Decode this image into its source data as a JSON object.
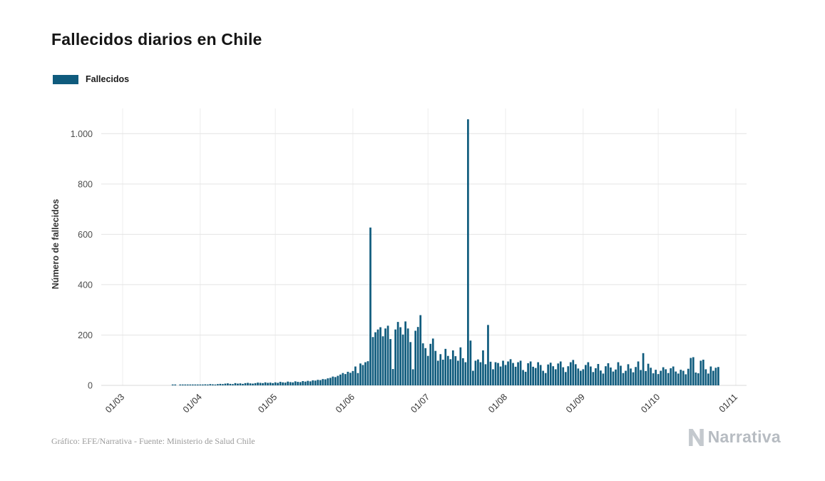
{
  "page": {
    "title": "Fallecidos diarios en Chile",
    "legend": {
      "label": "Fallecidos",
      "color": "#0f5b7d"
    },
    "caption": "Gráfico: EFE/Narrativa - Fuente: Ministerio de Salud Chile",
    "brand": "Narrativa"
  },
  "chart_data": {
    "type": "bar",
    "title": "Fallecidos diarios en Chile",
    "xlabel": "",
    "ylabel": "Número de fallecidos",
    "legend_position": "top-left",
    "grid": true,
    "bar_color": "#0f5b7d",
    "ylim": [
      0,
      1100
    ],
    "y_ticks": [
      0,
      200,
      400,
      600,
      800,
      1000
    ],
    "y_tick_labels": [
      "0",
      "200",
      "400",
      "600",
      "800",
      "1.000"
    ],
    "x_tick_labels": [
      "01/03",
      "01/04",
      "01/05",
      "01/06",
      "01/07",
      "01/08",
      "01/09",
      "01/10",
      "01/11"
    ],
    "x_tick_day_offsets": [
      0,
      31,
      61,
      92,
      122,
      153,
      184,
      214,
      245
    ],
    "x_unit": "day",
    "x_start": "01/03",
    "x_end": "25/10",
    "notable_points": [
      {
        "x": "08/06",
        "value": 627
      },
      {
        "x": "17/07",
        "value": 1057
      }
    ],
    "series": [
      {
        "name": "Fallecidos",
        "values": [
          0,
          0,
          0,
          0,
          0,
          0,
          0,
          0,
          0,
          0,
          0,
          0,
          0,
          0,
          0,
          0,
          0,
          0,
          0,
          0,
          1,
          1,
          0,
          1,
          1,
          2,
          1,
          2,
          2,
          3,
          3,
          3,
          2,
          4,
          3,
          5,
          4,
          2,
          5,
          6,
          5,
          7,
          8,
          6,
          5,
          9,
          7,
          8,
          6,
          9,
          10,
          8,
          7,
          9,
          11,
          10,
          9,
          12,
          10,
          11,
          9,
          12,
          10,
          14,
          12,
          11,
          15,
          13,
          12,
          16,
          14,
          13,
          17,
          15,
          18,
          16,
          20,
          19,
          22,
          21,
          25,
          24,
          28,
          30,
          35,
          33,
          38,
          43,
          49,
          45,
          54,
          50,
          57,
          75,
          49,
          87,
          81,
          92,
          96,
          627,
          192,
          211,
          222,
          231,
          195,
          226,
          237,
          184,
          65,
          222,
          252,
          231,
          202,
          254,
          226,
          172,
          64,
          217,
          232,
          279,
          167,
          148,
          117,
          165,
          186,
          137,
          98,
          124,
          102,
          145,
          117,
          104,
          139,
          116,
          98,
          151,
          108,
          92,
          1057,
          178,
          58,
          98,
          103,
          92,
          139,
          84,
          240,
          94,
          64,
          92,
          89,
          75,
          98,
          81,
          95,
          104,
          89,
          74,
          92,
          98,
          61,
          54,
          88,
          95,
          74,
          69,
          92,
          81,
          58,
          49,
          83,
          90,
          76,
          64,
          87,
          95,
          72,
          53,
          76,
          92,
          101,
          84,
          67,
          58,
          64,
          81,
          92,
          75,
          53,
          68,
          85,
          59,
          47,
          76,
          88,
          71,
          55,
          63,
          92,
          78,
          49,
          58,
          84,
          67,
          52,
          73,
          95,
          61,
          128,
          57,
          86,
          70,
          48,
          62,
          45,
          58,
          72,
          64,
          49,
          68,
          75,
          55,
          47,
          62,
          58,
          44,
          66,
          109,
          112,
          51,
          48,
          98,
          102,
          64,
          47,
          75,
          58,
          70,
          73
        ]
      }
    ]
  }
}
